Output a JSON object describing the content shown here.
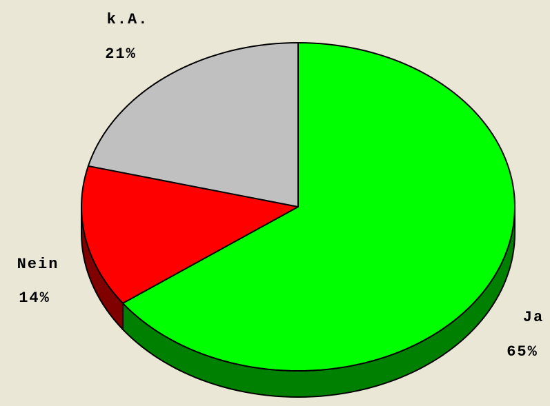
{
  "chart_data": {
    "type": "pie",
    "categories": [
      "Ja",
      "Nein",
      "k.A."
    ],
    "values": [
      65,
      14,
      21
    ],
    "value_labels": [
      "65%",
      "14%",
      "21%"
    ],
    "colors": [
      "#00ff00",
      "#ff0000",
      "#c0c0c0"
    ],
    "side_colors": [
      "#008000",
      "#800000",
      "#808080"
    ]
  }
}
